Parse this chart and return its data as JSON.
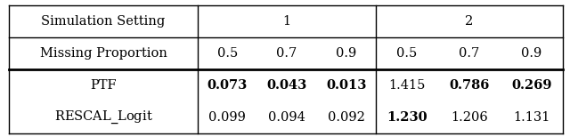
{
  "header1": "Simulation Setting",
  "header2": "Missing Proportion",
  "sim_settings": [
    "1",
    "2"
  ],
  "missing_proportions": [
    "0.5",
    "0.7",
    "0.9",
    "0.5",
    "0.7",
    "0.9"
  ],
  "rows": [
    {
      "name": "PTF",
      "values": [
        "0.073",
        "0.043",
        "0.013",
        "1.415",
        "0.786",
        "0.269"
      ],
      "bold": [
        true,
        true,
        true,
        false,
        true,
        true
      ]
    },
    {
      "name": "RESCAL_Logit",
      "values": [
        "0.099",
        "0.094",
        "0.092",
        "1.230",
        "1.206",
        "1.131"
      ],
      "bold": [
        false,
        false,
        false,
        true,
        false,
        false
      ]
    }
  ],
  "background_color": "#ffffff",
  "text_color": "#000000",
  "font_size": 10.5
}
